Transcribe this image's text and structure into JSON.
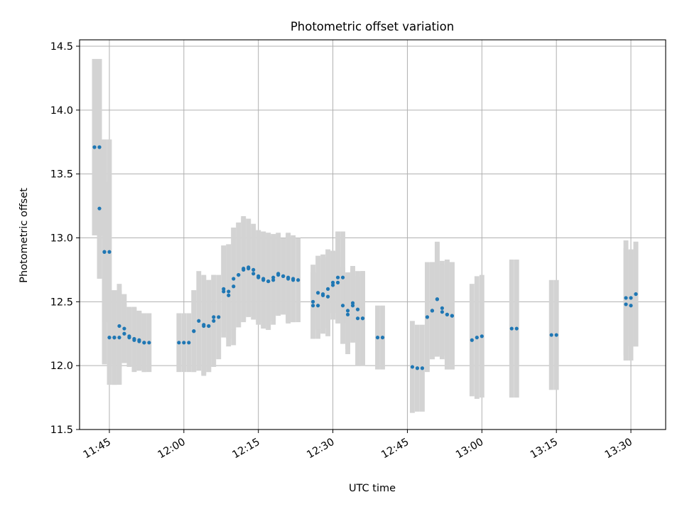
{
  "chart_data": {
    "type": "scatter",
    "title": "Photometric offset variation",
    "xlabel": "UTC time",
    "ylabel": "Photometric offset",
    "x_is_time": true,
    "x_range": [
      "11:39",
      "13:37"
    ],
    "xlim": [
      "11:39",
      "13:37"
    ],
    "ylim": [
      11.5,
      14.55
    ],
    "x_ticks": [
      "11:45",
      "12:00",
      "12:15",
      "12:30",
      "12:45",
      "13:00",
      "13:15",
      "13:30"
    ],
    "y_ticks": [
      "11.5",
      "12.0",
      "12.5",
      "13.0",
      "13.5",
      "14.0",
      "14.5"
    ],
    "grid": true,
    "marker_color": "#1f77b4",
    "errorbar_color": "#d3d3d3",
    "series": [
      {
        "x": [
          "11:42",
          "11:42",
          "11:43",
          "11:43",
          "11:43",
          "11:44",
          "11:44",
          "11:45",
          "11:45",
          "11:46",
          "11:46",
          "11:47",
          "11:47",
          "11:48",
          "11:48",
          "11:49",
          "11:49",
          "11:50",
          "11:50",
          "11:51",
          "11:51",
          "11:52",
          "11:52",
          "11:53",
          "11:59",
          "12:00",
          "12:01",
          "12:02",
          "12:02",
          "12:03",
          "12:04",
          "12:04",
          "12:05",
          "12:05",
          "12:06",
          "12:06",
          "12:07",
          "12:08",
          "12:08",
          "12:09",
          "12:09",
          "12:10",
          "12:10",
          "12:11",
          "12:11",
          "12:12",
          "12:12",
          "12:13",
          "12:13",
          "12:14",
          "12:14",
          "12:15",
          "12:15",
          "12:16",
          "12:16",
          "12:17",
          "12:17",
          "12:18",
          "12:18",
          "12:19",
          "12:19",
          "12:20",
          "12:20",
          "12:21",
          "12:21",
          "12:22",
          "12:22",
          "12:23",
          "12:26",
          "12:26",
          "12:27",
          "12:27",
          "12:28",
          "12:28",
          "12:29",
          "12:29",
          "12:30",
          "12:30",
          "12:31",
          "12:31",
          "12:32",
          "12:32",
          "12:33",
          "12:33",
          "12:34",
          "12:34",
          "12:35",
          "12:35",
          "12:36",
          "12:36",
          "12:39",
          "12:40",
          "12:46",
          "12:47",
          "12:48",
          "12:49",
          "12:50",
          "12:50",
          "12:51",
          "12:51",
          "12:52",
          "12:52",
          "12:53",
          "12:53",
          "12:54",
          "12:54",
          "12:58",
          "12:59",
          "13:00",
          "13:06",
          "13:07",
          "13:14",
          "13:15",
          "13:29",
          "13:29",
          "13:30",
          "13:30",
          "13:31",
          "13:31"
        ],
        "y": [
          13.71,
          13.71,
          13.71,
          13.71,
          13.23,
          12.89,
          12.89,
          12.89,
          12.22,
          12.22,
          12.22,
          12.22,
          12.31,
          12.29,
          12.25,
          12.23,
          12.22,
          12.21,
          12.2,
          12.2,
          12.19,
          12.18,
          12.18,
          12.18,
          12.18,
          12.18,
          12.18,
          12.27,
          12.27,
          12.35,
          12.32,
          12.31,
          12.31,
          12.31,
          12.35,
          12.38,
          12.38,
          12.6,
          12.58,
          12.58,
          12.55,
          12.62,
          12.68,
          12.71,
          12.71,
          12.75,
          12.76,
          12.76,
          12.77,
          12.75,
          12.72,
          12.7,
          12.69,
          12.68,
          12.67,
          12.66,
          12.66,
          12.67,
          12.69,
          12.71,
          12.72,
          12.7,
          12.7,
          12.69,
          12.68,
          12.68,
          12.67,
          12.67,
          12.5,
          12.47,
          12.47,
          12.57,
          12.56,
          12.55,
          12.54,
          12.6,
          12.63,
          12.65,
          12.65,
          12.69,
          12.69,
          12.47,
          12.43,
          12.4,
          12.49,
          12.47,
          12.44,
          12.37,
          12.37,
          12.37,
          12.22,
          12.22,
          11.99,
          11.98,
          11.98,
          12.38,
          12.43,
          12.43,
          12.52,
          12.52,
          12.45,
          12.42,
          12.4,
          12.4,
          12.39,
          12.39,
          12.2,
          12.22,
          12.23,
          12.29,
          12.29,
          12.24,
          12.24,
          12.53,
          12.48,
          12.47,
          12.53,
          12.56,
          12.56
        ],
        "yerr": [
          0.69,
          0.69,
          0.69,
          0.69,
          0.55,
          0.55,
          0.88,
          0.88,
          0.37,
          0.37,
          0.37,
          0.37,
          0.33,
          0.27,
          0.23,
          0.23,
          0.23,
          0.25,
          0.25,
          0.23,
          0.23,
          0.23,
          0.23,
          0.23,
          0.23,
          0.23,
          0.23,
          0.32,
          0.32,
          0.39,
          0.39,
          0.39,
          0.36,
          0.36,
          0.36,
          0.33,
          0.33,
          0.34,
          0.36,
          0.37,
          0.4,
          0.46,
          0.4,
          0.41,
          0.41,
          0.41,
          0.41,
          0.38,
          0.38,
          0.36,
          0.36,
          0.36,
          0.37,
          0.37,
          0.38,
          0.38,
          0.38,
          0.35,
          0.34,
          0.32,
          0.32,
          0.3,
          0.3,
          0.35,
          0.35,
          0.34,
          0.33,
          0.33,
          0.29,
          0.26,
          0.26,
          0.29,
          0.31,
          0.29,
          0.31,
          0.31,
          0.27,
          0.24,
          0.24,
          0.36,
          0.36,
          0.3,
          0.3,
          0.31,
          0.29,
          0.29,
          0.26,
          0.37,
          0.37,
          0.37,
          0.25,
          0.25,
          0.36,
          0.34,
          0.34,
          0.43,
          0.38,
          0.38,
          0.45,
          0.44,
          0.37,
          0.37,
          0.43,
          0.43,
          0.42,
          0.42,
          0.44,
          0.48,
          0.48,
          0.54,
          0.54,
          0.43,
          0.43,
          0.45,
          0.44,
          0.43,
          0.38,
          0.41,
          0.41
        ]
      }
    ]
  }
}
